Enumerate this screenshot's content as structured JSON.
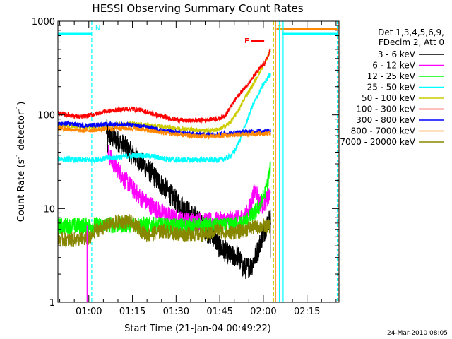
{
  "chart_data": {
    "type": "line",
    "title": "HESSI Observing Summary Count Rates",
    "xlabel": "Start Time (21-Jan-04 00:49:22)",
    "ylabel_main": "Count Rate (s",
    "ylabel_sup1": "-1",
    "ylabel_mid": " detector",
    "ylabel_sup2": "-1",
    "ylabel_end": ")",
    "y_scale": "log",
    "ylim": [
      1,
      1000
    ],
    "xlim_minutes": [
      49.37,
      146.0
    ],
    "x_ticks": [
      {
        "t": 60,
        "label": "01:00"
      },
      {
        "t": 75,
        "label": "01:15"
      },
      {
        "t": 90,
        "label": "01:30"
      },
      {
        "t": 105,
        "label": "01:45"
      },
      {
        "t": 120,
        "label": "02:00"
      },
      {
        "t": 135,
        "label": "02:15"
      }
    ],
    "y_ticks": [
      {
        "v": 1,
        "label": "1"
      },
      {
        "v": 10,
        "label": "10"
      },
      {
        "v": 100,
        "label": "100"
      },
      {
        "v": 1000,
        "label": "1000"
      }
    ],
    "legend_header": [
      "Det 1,3,4,5,6,9,",
      "FDecim 2, Att 0"
    ],
    "legend_position": "right",
    "series": [
      {
        "name": "3 - 6 keV",
        "color": "#000000",
        "t": [
          66,
          67,
          69,
          71,
          73,
          75,
          77,
          79,
          81,
          83,
          85,
          87,
          89,
          91,
          93,
          95,
          97,
          99,
          101,
          103,
          105,
          107,
          109,
          111,
          113,
          114,
          116,
          118,
          120,
          121.5,
          122.5
        ],
        "y": [
          70,
          60,
          55,
          50,
          44,
          38,
          33,
          29,
          25,
          21,
          18,
          15.5,
          13,
          11.5,
          10,
          8.8,
          8,
          6.6,
          5.5,
          5,
          3.8,
          3.5,
          3,
          3.2,
          2.4,
          2.3,
          2.5,
          3.5,
          5.5,
          7,
          8
        ]
      },
      {
        "name": "6 - 12 keV",
        "color": "#ff00ff",
        "t": [
          66.5,
          68,
          70,
          72,
          74,
          76,
          78,
          80,
          82,
          84,
          86,
          88,
          90,
          92,
          94,
          96,
          98,
          100,
          102,
          104,
          106,
          108,
          110,
          112,
          114,
          115.5,
          116.5,
          117.5,
          118.5,
          119.5,
          121,
          122.5
        ],
        "y": [
          40,
          32,
          26,
          21,
          18,
          15,
          13,
          11.5,
          10.5,
          9.5,
          8.8,
          8.2,
          7.8,
          7.5,
          7.3,
          7.3,
          7.3,
          7.2,
          7.3,
          7.4,
          7.4,
          7.5,
          7.5,
          7.8,
          8.5,
          10.5,
          14,
          16,
          12,
          11,
          12,
          14
        ]
      },
      {
        "name": "12 - 25 keV",
        "color": "#00ff00",
        "t": [
          49.4,
          55,
          60,
          65,
          70,
          75,
          80,
          85,
          90,
          95,
          100,
          105,
          110,
          113,
          115,
          117,
          119,
          121,
          122.5
        ],
        "y": [
          6.5,
          6.5,
          6.6,
          6.7,
          6.7,
          6.8,
          6.7,
          6.6,
          6.5,
          6.5,
          6.5,
          6.5,
          6.7,
          7,
          7.8,
          9,
          11,
          16,
          28
        ]
      },
      {
        "name": "25 - 50 keV",
        "color": "#00ffff",
        "t": [
          49.4,
          55,
          60,
          65,
          68,
          72,
          77,
          82,
          86,
          90,
          95,
          100,
          105,
          108,
          110,
          112,
          114,
          116,
          118,
          120,
          122.5
        ],
        "y": [
          34,
          33,
          33,
          34,
          35,
          36,
          37,
          36,
          34,
          33,
          33,
          33,
          33,
          35,
          40,
          55,
          80,
          120,
          160,
          210,
          280
        ]
      },
      {
        "name": "50 - 100 keV",
        "color": "#cccc00",
        "t": [
          49.4,
          55,
          60,
          65,
          70,
          75,
          80,
          85,
          90,
          95,
          100,
          105,
          108,
          110,
          112,
          114,
          116,
          118,
          120,
          121.5,
          122.5
        ],
        "y": [
          78,
          76,
          75,
          77,
          79,
          80,
          78,
          75,
          72,
          70,
          68,
          70,
          80,
          95,
          120,
          160,
          200,
          260,
          330,
          420,
          500
        ]
      },
      {
        "name": "100 - 300 keV",
        "color": "#ff0000",
        "t": [
          49.4,
          53,
          57,
          61,
          65,
          69,
          73,
          77,
          81,
          85,
          89,
          93,
          97,
          101,
          105,
          107,
          109,
          111,
          113,
          115,
          117,
          119,
          120.5,
          122,
          122.5
        ],
        "y": [
          105,
          100,
          95,
          100,
          108,
          112,
          116,
          114,
          105,
          96,
          90,
          87,
          87,
          89,
          92,
          100,
          125,
          155,
          185,
          220,
          265,
          320,
          360,
          450,
          520
        ]
      },
      {
        "name": "300 - 800 keV",
        "color": "#0000ff",
        "t": [
          49.4,
          54,
          58,
          62,
          66,
          70,
          74,
          78,
          82,
          86,
          90,
          94,
          98,
          102,
          106,
          110,
          114,
          118,
          122.5
        ],
        "y": [
          80,
          80,
          77,
          78,
          79,
          79,
          78,
          76,
          72,
          68,
          65,
          63,
          62,
          62,
          63,
          64,
          66,
          67,
          68
        ]
      },
      {
        "name": "800 - 7000 keV",
        "color": "#ff8800",
        "t": [
          49.4,
          54,
          58,
          62,
          66,
          70,
          74,
          78,
          82,
          86,
          90,
          94,
          98,
          102,
          106,
          110,
          114,
          118,
          122.5
        ],
        "y": [
          72,
          70,
          68,
          69,
          71,
          72,
          72,
          70,
          67,
          64,
          62,
          60,
          59,
          59,
          60,
          61,
          62,
          63,
          64
        ]
      },
      {
        "name": "7000 - 20000 keV",
        "color": "#888800",
        "t": [
          49.4,
          53,
          57,
          60.8,
          62,
          65,
          68,
          71,
          74,
          77,
          80,
          83,
          86,
          89,
          92,
          95,
          98,
          101,
          104,
          107,
          110,
          113,
          116,
          119,
          122.5
        ],
        "y": [
          4.7,
          4.6,
          4.7,
          4.8,
          5.8,
          6.3,
          7.0,
          7.3,
          7.3,
          6.3,
          5.2,
          5.5,
          5.8,
          5.5,
          5.3,
          5.4,
          5.3,
          5.3,
          6.0,
          5.5,
          5.6,
          5.8,
          6.3,
          6.5,
          6.5
        ]
      }
    ],
    "markers": [
      {
        "label": "N",
        "color": "#00ffff",
        "t": 61.0
      },
      {
        "label": "S",
        "color": "#cccc00",
        "t": 123.5
      }
    ],
    "flare_flag": {
      "label": "F",
      "color": "#ff0000"
    },
    "footer_date": "24-Mar-2010 08:05"
  }
}
